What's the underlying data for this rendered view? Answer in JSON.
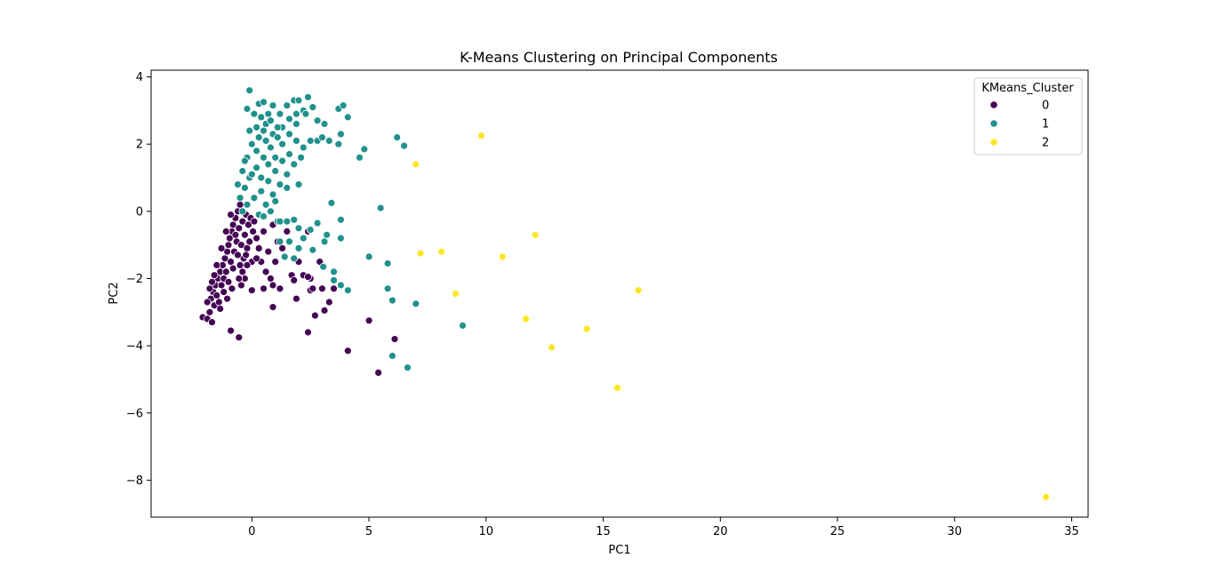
{
  "chart_data": {
    "type": "scatter",
    "title": "K-Means Clustering on Principal Components",
    "xlabel": "PC1",
    "ylabel": "PC2",
    "xlim": [
      -4.3,
      35.7
    ],
    "ylim": [
      -9.1,
      4.2
    ],
    "x_ticks": [
      0,
      5,
      10,
      15,
      20,
      25,
      30,
      35
    ],
    "y_ticks": [
      -8,
      -6,
      -4,
      -2,
      0,
      2,
      4
    ],
    "grid": false,
    "legend": {
      "title": "KMeans_Cluster",
      "placement": "top-right",
      "entries": [
        {
          "label": "0",
          "color": "#440154"
        },
        {
          "label": "1",
          "color": "#21918c"
        },
        {
          "label": "2",
          "color": "#fde725"
        }
      ]
    },
    "series": [
      {
        "name": "0",
        "color": "#440154",
        "points": [
          [
            -2.1,
            -3.15
          ],
          [
            -1.9,
            -3.2
          ],
          [
            -1.8,
            -3.0
          ],
          [
            -1.7,
            -3.3
          ],
          [
            -1.6,
            -2.8
          ],
          [
            -1.75,
            -2.6
          ],
          [
            -1.65,
            -2.4
          ],
          [
            -1.55,
            -2.2
          ],
          [
            -1.45,
            -2.0
          ],
          [
            -1.5,
            -2.5
          ],
          [
            -1.35,
            -1.8
          ],
          [
            -1.25,
            -1.6
          ],
          [
            -1.3,
            -2.2
          ],
          [
            -1.2,
            -2.0
          ],
          [
            -1.15,
            -1.4
          ],
          [
            -1.05,
            -1.2
          ],
          [
            -1.1,
            -1.8
          ],
          [
            -1.0,
            -1.0
          ],
          [
            -0.95,
            -0.8
          ],
          [
            -0.9,
            -1.5
          ],
          [
            -0.85,
            -0.6
          ],
          [
            -0.8,
            -0.4
          ],
          [
            -0.75,
            -1.2
          ],
          [
            -0.7,
            -0.2
          ],
          [
            -0.65,
            -0.9
          ],
          [
            -0.6,
            0.0
          ],
          [
            -0.55,
            -0.5
          ],
          [
            -0.5,
            0.2
          ],
          [
            -0.45,
            -1.0
          ],
          [
            -0.4,
            -0.3
          ],
          [
            -0.35,
            -1.4
          ],
          [
            -0.3,
            -0.7
          ],
          [
            -0.25,
            -0.1
          ],
          [
            -0.2,
            -1.1
          ],
          [
            -0.15,
            -0.4
          ],
          [
            -0.1,
            -0.9
          ],
          [
            -0.05,
            -0.2
          ],
          [
            0.0,
            -1.5
          ],
          [
            0.05,
            -0.6
          ],
          [
            0.1,
            -0.3
          ],
          [
            -1.4,
            -2.7
          ],
          [
            -1.6,
            -1.9
          ],
          [
            -1.2,
            -2.4
          ],
          [
            -1.0,
            -2.1
          ],
          [
            -0.8,
            -1.7
          ],
          [
            -0.6,
            -1.3
          ],
          [
            -0.4,
            -1.8
          ],
          [
            -0.2,
            -1.6
          ],
          [
            -1.3,
            -1.1
          ],
          [
            -1.1,
            -0.6
          ],
          [
            -0.9,
            -0.1
          ],
          [
            -0.7,
            -0.7
          ],
          [
            -0.5,
            -1.6
          ],
          [
            -0.3,
            -2.0
          ],
          [
            -1.5,
            -1.6
          ],
          [
            -1.8,
            -2.3
          ],
          [
            -1.9,
            -2.7
          ],
          [
            -1.7,
            -2.1
          ],
          [
            -1.35,
            -2.9
          ],
          [
            -1.05,
            -2.6
          ],
          [
            -0.85,
            -2.3
          ],
          [
            -0.55,
            -2.0
          ],
          [
            -0.25,
            -1.3
          ],
          [
            0.2,
            -0.8
          ],
          [
            0.3,
            -1.1
          ],
          [
            0.5,
            -0.6
          ],
          [
            0.7,
            -1.2
          ],
          [
            0.9,
            -0.4
          ],
          [
            1.1,
            -0.9
          ],
          [
            0.4,
            -1.5
          ],
          [
            0.6,
            -1.8
          ],
          [
            0.8,
            -2.0
          ],
          [
            1.0,
            -1.5
          ],
          [
            1.3,
            -1.1
          ],
          [
            1.5,
            -0.6
          ],
          [
            1.7,
            -1.9
          ],
          [
            2.0,
            -1.5
          ],
          [
            2.2,
            -1.9
          ],
          [
            2.4,
            -0.6
          ],
          [
            1.2,
            -2.3
          ],
          [
            0.9,
            -2.2
          ],
          [
            0.5,
            -2.3
          ],
          [
            0.0,
            -2.35
          ],
          [
            -0.45,
            -2.2
          ],
          [
            0.2,
            -1.4
          ],
          [
            1.8,
            -2.05
          ],
          [
            2.5,
            -2.35
          ],
          [
            2.6,
            -2.3
          ],
          [
            2.9,
            -1.5
          ],
          [
            3.5,
            -2.3
          ],
          [
            3.3,
            -2.7
          ],
          [
            3.1,
            -2.95
          ],
          [
            2.7,
            -3.1
          ],
          [
            2.5,
            -2.0
          ],
          [
            1.9,
            -2.6
          ],
          [
            0.9,
            -2.85
          ],
          [
            5.0,
            -3.25
          ],
          [
            2.4,
            -3.6
          ],
          [
            -0.9,
            -3.55
          ],
          [
            -0.55,
            -3.75
          ],
          [
            4.1,
            -4.15
          ],
          [
            6.1,
            -3.8
          ],
          [
            5.4,
            -4.8
          ],
          [
            3.0,
            -2.3
          ],
          [
            2.4,
            -1.95
          ]
        ]
      },
      {
        "name": "1",
        "color": "#21918c",
        "points": [
          [
            -0.1,
            3.6
          ],
          [
            0.3,
            3.2
          ],
          [
            0.5,
            3.25
          ],
          [
            0.9,
            3.15
          ],
          [
            0.7,
            2.9
          ],
          [
            0.4,
            2.8
          ],
          [
            0.1,
            2.9
          ],
          [
            -0.2,
            3.05
          ],
          [
            0.6,
            2.6
          ],
          [
            0.2,
            2.5
          ],
          [
            -0.1,
            2.4
          ],
          [
            0.3,
            2.2
          ],
          [
            0.6,
            2.1
          ],
          [
            0.9,
            2.3
          ],
          [
            1.2,
            2.9
          ],
          [
            1.5,
            3.15
          ],
          [
            1.8,
            3.3
          ],
          [
            2.0,
            3.3
          ],
          [
            2.4,
            3.4
          ],
          [
            2.2,
            3.0
          ],
          [
            1.9,
            2.9
          ],
          [
            1.6,
            2.75
          ],
          [
            1.3,
            2.5
          ],
          [
            1.1,
            2.2
          ],
          [
            0.8,
            1.9
          ],
          [
            0.5,
            1.6
          ],
          [
            0.2,
            1.3
          ],
          [
            -0.1,
            1.0
          ],
          [
            -0.3,
            0.7
          ],
          [
            -0.5,
            0.4
          ],
          [
            -0.6,
            0.8
          ],
          [
            -0.4,
            1.2
          ],
          [
            -0.2,
            1.6
          ],
          [
            0.0,
            2.0
          ],
          [
            0.4,
            1.0
          ],
          [
            0.7,
            1.4
          ],
          [
            1.0,
            1.6
          ],
          [
            1.3,
            2.0
          ],
          [
            1.6,
            2.3
          ],
          [
            1.9,
            2.6
          ],
          [
            2.3,
            2.9
          ],
          [
            2.6,
            3.1
          ],
          [
            3.1,
            2.6
          ],
          [
            3.7,
            3.05
          ],
          [
            3.9,
            3.15
          ],
          [
            4.1,
            2.8
          ],
          [
            2.8,
            2.7
          ],
          [
            2.5,
            2.1
          ],
          [
            2.2,
            1.9
          ],
          [
            1.9,
            2.1
          ],
          [
            1.6,
            1.7
          ],
          [
            1.3,
            1.5
          ],
          [
            1.0,
            1.2
          ],
          [
            0.7,
            0.9
          ],
          [
            0.4,
            0.6
          ],
          [
            0.1,
            0.4
          ],
          [
            -0.2,
            0.2
          ],
          [
            -0.4,
            0.0
          ],
          [
            0.3,
            -0.1
          ],
          [
            0.6,
            0.2
          ],
          [
            0.9,
            0.5
          ],
          [
            1.2,
            0.8
          ],
          [
            1.5,
            1.1
          ],
          [
            1.8,
            1.4
          ],
          [
            2.1,
            1.6
          ],
          [
            0.8,
            0.0
          ],
          [
            1.1,
            -0.3
          ],
          [
            0.5,
            -0.15
          ],
          [
            0.2,
            1.8
          ],
          [
            -0.3,
            1.5
          ],
          [
            0.0,
            1.1
          ],
          [
            0.5,
            2.4
          ],
          [
            0.8,
            2.7
          ],
          [
            1.1,
            2.5
          ],
          [
            2.8,
            2.1
          ],
          [
            3.0,
            2.2
          ],
          [
            3.3,
            2.1
          ],
          [
            3.8,
            2.3
          ],
          [
            3.7,
            2.0
          ],
          [
            4.6,
            1.6
          ],
          [
            4.8,
            1.85
          ],
          [
            6.2,
            2.2
          ],
          [
            6.5,
            1.95
          ],
          [
            1.5,
            0.7
          ],
          [
            2.0,
            0.8
          ],
          [
            1.0,
            0.3
          ],
          [
            1.5,
            -0.3
          ],
          [
            1.8,
            -0.25
          ],
          [
            2.0,
            -0.5
          ],
          [
            1.2,
            -0.3
          ],
          [
            2.8,
            -0.35
          ],
          [
            3.4,
            0.25
          ],
          [
            3.8,
            -0.25
          ],
          [
            5.5,
            0.1
          ],
          [
            3.2,
            -0.7
          ],
          [
            3.8,
            -0.8
          ],
          [
            2.5,
            -0.55
          ],
          [
            2.2,
            -0.8
          ],
          [
            1.6,
            -0.9
          ],
          [
            1.2,
            -0.9
          ],
          [
            3.1,
            -0.9
          ],
          [
            2.6,
            -1.15
          ],
          [
            2.0,
            -1.1
          ],
          [
            1.8,
            -1.4
          ],
          [
            1.4,
            -1.35
          ],
          [
            3.05,
            -1.65
          ],
          [
            3.5,
            -1.8
          ],
          [
            3.5,
            -2.05
          ],
          [
            3.8,
            -2.2
          ],
          [
            4.1,
            -2.35
          ],
          [
            5.0,
            -1.35
          ],
          [
            5.8,
            -1.55
          ],
          [
            5.8,
            -2.3
          ],
          [
            6.0,
            -2.65
          ],
          [
            7.0,
            -2.75
          ],
          [
            9.0,
            -3.4
          ],
          [
            6.0,
            -4.3
          ],
          [
            6.65,
            -4.65
          ]
        ]
      },
      {
        "name": "2",
        "color": "#fde725",
        "points": [
          [
            9.8,
            2.25
          ],
          [
            7.0,
            1.4
          ],
          [
            12.1,
            -0.7
          ],
          [
            7.2,
            -1.25
          ],
          [
            8.1,
            -1.2
          ],
          [
            10.7,
            -1.35
          ],
          [
            16.5,
            -2.35
          ],
          [
            8.7,
            -2.45
          ],
          [
            11.7,
            -3.2
          ],
          [
            14.3,
            -3.5
          ],
          [
            12.8,
            -4.05
          ],
          [
            15.6,
            -5.25
          ],
          [
            33.9,
            -8.5
          ]
        ]
      }
    ]
  }
}
